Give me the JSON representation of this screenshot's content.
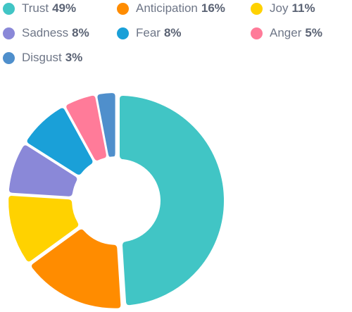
{
  "chart_data": {
    "type": "pie",
    "variant": "donut",
    "legend_position": "top",
    "slices": [
      {
        "label": "Trust",
        "value": 49,
        "value_label": "49%",
        "color": "#41c5c5"
      },
      {
        "label": "Anticipation",
        "value": 16,
        "value_label": "16%",
        "color": "#ff8c00"
      },
      {
        "label": "Joy",
        "value": 11,
        "value_label": "11%",
        "color": "#ffd200"
      },
      {
        "label": "Sadness",
        "value": 8,
        "value_label": "8%",
        "color": "#8a88d8"
      },
      {
        "label": "Fear",
        "value": 8,
        "value_label": "8%",
        "color": "#1aa0d8"
      },
      {
        "label": "Anger",
        "value": 5,
        "value_label": "5%",
        "color": "#ff7b99"
      },
      {
        "label": "Disgust",
        "value": 3,
        "value_label": "3%",
        "color": "#4f8fcc"
      }
    ]
  }
}
